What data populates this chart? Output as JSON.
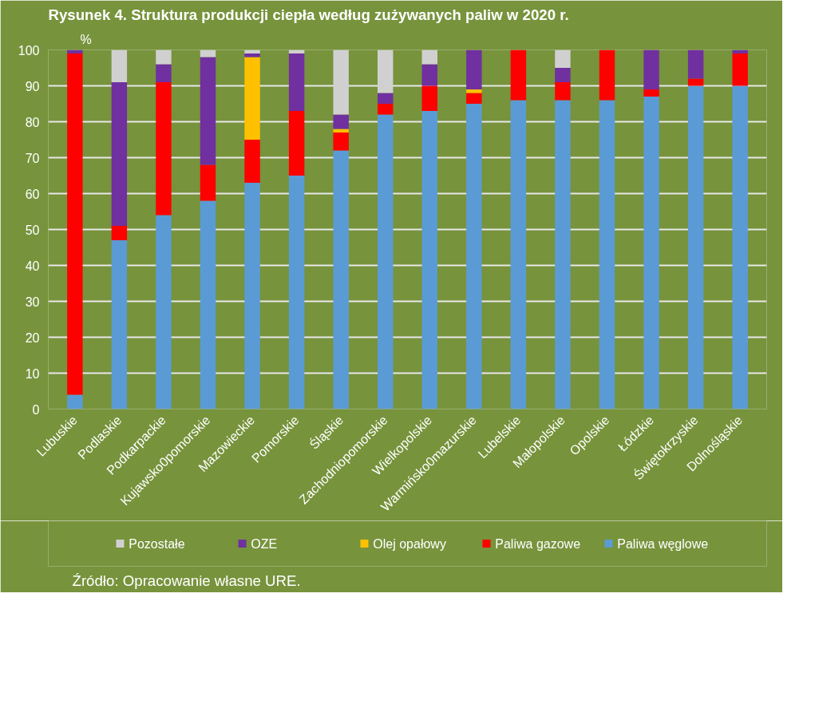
{
  "chart_data": {
    "type": "bar",
    "stacked": true,
    "title": "Rysunek 4. Struktura produkcji ciepła według zużywanych paliw w 2020 r.",
    "ylabel": "%",
    "categories": [
      "Lubuskie",
      "Podlaskie",
      "Podkarpackie",
      "Kujawsko0pomorskie",
      "Mazowieckie",
      "Pomorskie",
      "Śląskie",
      "Zachodniopomorskie",
      "Wielkopolskie",
      "Warmińsko0mazurskie",
      "Lubelskie",
      "Małopolskie",
      "Opolskie",
      "Łódzkie",
      "Świętokrzyskie",
      "Dolnośląskie"
    ],
    "series": [
      {
        "name": "Paliwa węglowe",
        "color": "#5b9bd5",
        "values": [
          4,
          47,
          54,
          58,
          63,
          65,
          72,
          82,
          83,
          85,
          86,
          86,
          86,
          87,
          90,
          90
        ]
      },
      {
        "name": "Paliwa gazowe",
        "color": "#ff0000",
        "values": [
          95,
          4,
          37,
          10,
          12,
          18,
          5,
          3,
          7,
          3,
          14,
          5,
          14,
          2,
          2,
          9
        ]
      },
      {
        "name": "Olej opałowy",
        "color": "#ffc000",
        "values": [
          0,
          0,
          0,
          0,
          23,
          0,
          1,
          0,
          0,
          1,
          0,
          0,
          0,
          0,
          0,
          0
        ]
      },
      {
        "name": "OZE",
        "color": "#7030a0",
        "values": [
          1,
          40,
          5,
          30,
          1,
          16,
          4,
          3,
          6,
          11,
          0,
          4,
          0,
          11,
          8,
          1
        ]
      },
      {
        "name": "Pozostałe",
        "color": "#d0d0d0",
        "values": [
          0,
          9,
          4,
          2,
          1,
          1,
          18,
          12,
          4,
          0,
          0,
          5,
          0,
          0,
          0,
          0
        ]
      }
    ],
    "ylim": [
      0,
      100
    ],
    "yticks": [
      0,
      10,
      20,
      30,
      40,
      50,
      60,
      70,
      80,
      90,
      100
    ],
    "grid": "y",
    "legend": "bottom",
    "annotations": [
      "Źródło: Opracowanie własne URE."
    ]
  }
}
